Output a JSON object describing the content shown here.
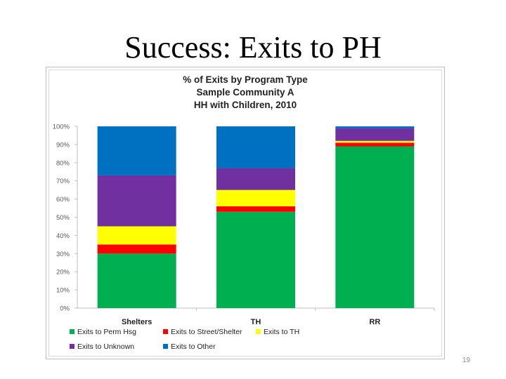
{
  "slide": {
    "title": "Success: Exits to PH",
    "page_number": "19"
  },
  "chart_data": {
    "type": "bar",
    "stacked": true,
    "title_lines": [
      "% of Exits by Program Type",
      "Sample Community A",
      "HH with Children, 2010"
    ],
    "categories": [
      "Shelters",
      "TH",
      "RR"
    ],
    "series": [
      {
        "name": "Exits to Perm Hsg",
        "color": "#00b050",
        "values": [
          30,
          53,
          89
        ]
      },
      {
        "name": "Exits to Street/Shelter",
        "color": "#ff0000",
        "values": [
          5,
          3,
          2
        ]
      },
      {
        "name": "Exits to TH",
        "color": "#ffff00",
        "values": [
          10,
          9,
          1
        ]
      },
      {
        "name": "Exits to Unknown",
        "color": "#7030a0",
        "values": [
          28,
          12,
          7
        ]
      },
      {
        "name": "Exits to Other",
        "color": "#0070c0",
        "values": [
          27,
          23,
          1
        ]
      }
    ],
    "y_ticks": [
      "0%",
      "10%",
      "20%",
      "30%",
      "40%",
      "50%",
      "60%",
      "70%",
      "80%",
      "90%",
      "100%"
    ],
    "ylim": [
      0,
      100
    ],
    "legend_position": "bottom",
    "grid": false
  }
}
